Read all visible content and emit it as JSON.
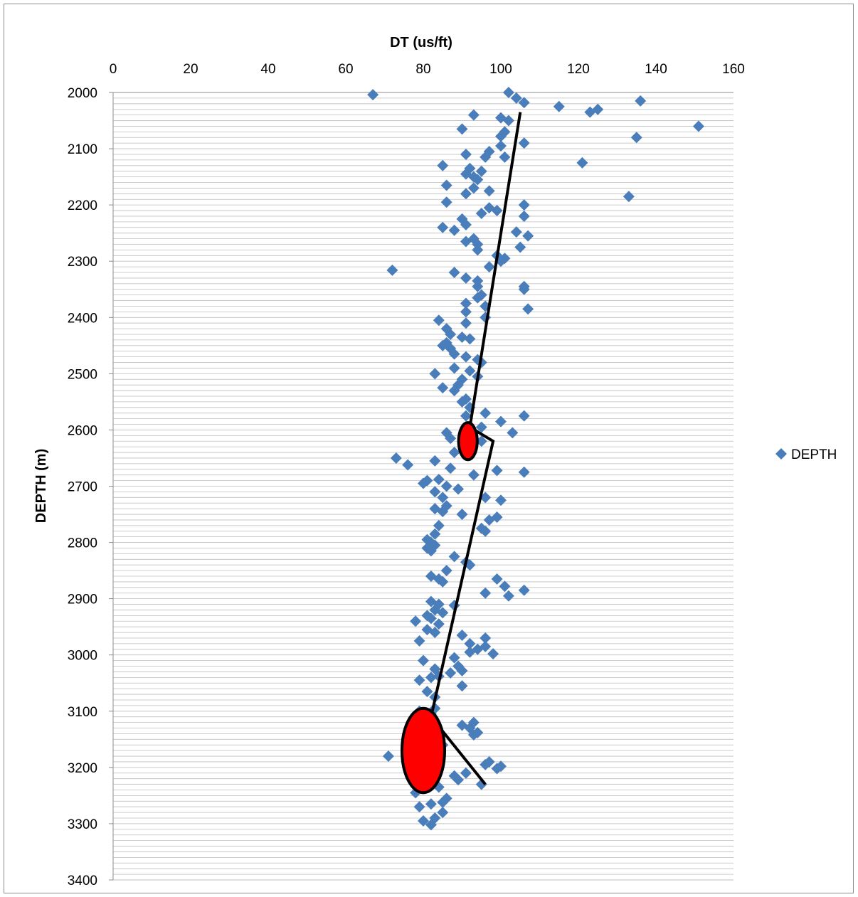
{
  "chart_data": {
    "type": "scatter",
    "title": "",
    "xlabel": "DT (us/ft)",
    "ylabel": "DEPTH (m)",
    "xlim": [
      0,
      160
    ],
    "ylim": [
      2000,
      3400
    ],
    "y_reversed": true,
    "x_axis_position": "top",
    "x_ticks": [
      "0",
      "20",
      "40",
      "60",
      "80",
      "100",
      "120",
      "140",
      "160"
    ],
    "y_ticks": [
      "2000",
      "2100",
      "2200",
      "2300",
      "2400",
      "2500",
      "2600",
      "2700",
      "2800",
      "2900",
      "3000",
      "3100",
      "3200",
      "3300",
      "3400"
    ],
    "grid": "horizontal minor gridlines",
    "legend_position": "right",
    "colors": {
      "marker": "#4a7ebb",
      "trend_line": "#000000",
      "highlight": "#ff0000"
    },
    "series": [
      {
        "name": "DEPTH",
        "marker": "diamond",
        "points": [
          [
            102,
            2000
          ],
          [
            67,
            2004
          ],
          [
            104,
            2010
          ],
          [
            106,
            2018
          ],
          [
            136,
            2015
          ],
          [
            115,
            2025
          ],
          [
            125,
            2030
          ],
          [
            123,
            2035
          ],
          [
            93,
            2040
          ],
          [
            100,
            2045
          ],
          [
            102,
            2050
          ],
          [
            151,
            2060
          ],
          [
            90,
            2065
          ],
          [
            101,
            2070
          ],
          [
            100,
            2078
          ],
          [
            135,
            2080
          ],
          [
            106,
            2090
          ],
          [
            100,
            2095
          ],
          [
            97,
            2105
          ],
          [
            91,
            2110
          ],
          [
            96,
            2115
          ],
          [
            101,
            2115
          ],
          [
            121,
            2125
          ],
          [
            85,
            2130
          ],
          [
            92,
            2135
          ],
          [
            95,
            2140
          ],
          [
            91,
            2145
          ],
          [
            93,
            2150
          ],
          [
            94,
            2155
          ],
          [
            86,
            2165
          ],
          [
            93,
            2170
          ],
          [
            97,
            2175
          ],
          [
            91,
            2180
          ],
          [
            133,
            2185
          ],
          [
            86,
            2195
          ],
          [
            106,
            2200
          ],
          [
            97,
            2205
          ],
          [
            99,
            2210
          ],
          [
            95,
            2215
          ],
          [
            106,
            2220
          ],
          [
            90,
            2225
          ],
          [
            91,
            2235
          ],
          [
            85,
            2240
          ],
          [
            88,
            2245
          ],
          [
            104,
            2248
          ],
          [
            107,
            2255
          ],
          [
            91,
            2265
          ],
          [
            93,
            2260
          ],
          [
            94,
            2270
          ],
          [
            94,
            2280
          ],
          [
            105,
            2275
          ],
          [
            99,
            2290
          ],
          [
            101,
            2295
          ],
          [
            100,
            2300
          ],
          [
            97,
            2310
          ],
          [
            72,
            2316
          ],
          [
            88,
            2320
          ],
          [
            91,
            2330
          ],
          [
            94,
            2335
          ],
          [
            94,
            2345
          ],
          [
            106,
            2345
          ],
          [
            106,
            2350
          ],
          [
            95,
            2360
          ],
          [
            94,
            2365
          ],
          [
            91,
            2375
          ],
          [
            96,
            2380
          ],
          [
            107,
            2385
          ],
          [
            91,
            2390
          ],
          [
            96,
            2400
          ],
          [
            84,
            2405
          ],
          [
            91,
            2410
          ],
          [
            86,
            2420
          ],
          [
            87,
            2430
          ],
          [
            90,
            2435
          ],
          [
            92,
            2438
          ],
          [
            86,
            2445
          ],
          [
            87,
            2455
          ],
          [
            85,
            2450
          ],
          [
            88,
            2465
          ],
          [
            91,
            2470
          ],
          [
            94,
            2475
          ],
          [
            95,
            2480
          ],
          [
            88,
            2490
          ],
          [
            92,
            2495
          ],
          [
            83,
            2500
          ],
          [
            94,
            2505
          ],
          [
            90,
            2510
          ],
          [
            89,
            2520
          ],
          [
            85,
            2525
          ],
          [
            88,
            2530
          ],
          [
            91,
            2545
          ],
          [
            90,
            2550
          ],
          [
            92,
            2560
          ],
          [
            96,
            2570
          ],
          [
            91,
            2575
          ],
          [
            106,
            2575
          ],
          [
            100,
            2585
          ],
          [
            95,
            2595
          ],
          [
            91,
            2600
          ],
          [
            86,
            2605
          ],
          [
            103,
            2605
          ],
          [
            87,
            2615
          ],
          [
            95,
            2620
          ],
          [
            92,
            2630
          ],
          [
            88,
            2640
          ],
          [
            73,
            2650
          ],
          [
            83,
            2655
          ],
          [
            76,
            2662
          ],
          [
            87,
            2668
          ],
          [
            99,
            2672
          ],
          [
            106,
            2675
          ],
          [
            93,
            2680
          ],
          [
            84,
            2688
          ],
          [
            80,
            2695
          ],
          [
            81,
            2690
          ],
          [
            86,
            2700
          ],
          [
            89,
            2705
          ],
          [
            83,
            2710
          ],
          [
            85,
            2720
          ],
          [
            96,
            2720
          ],
          [
            100,
            2725
          ],
          [
            86,
            2735
          ],
          [
            83,
            2740
          ],
          [
            85,
            2745
          ],
          [
            90,
            2750
          ],
          [
            99,
            2755
          ],
          [
            97,
            2760
          ],
          [
            84,
            2770
          ],
          [
            95,
            2775
          ],
          [
            96,
            2780
          ],
          [
            83,
            2785
          ],
          [
            81,
            2795
          ],
          [
            82,
            2800
          ],
          [
            83,
            2805
          ],
          [
            81,
            2810
          ],
          [
            82,
            2815
          ],
          [
            88,
            2825
          ],
          [
            91,
            2835
          ],
          [
            92,
            2840
          ],
          [
            86,
            2850
          ],
          [
            82,
            2860
          ],
          [
            84,
            2865
          ],
          [
            99,
            2865
          ],
          [
            85,
            2870
          ],
          [
            101,
            2878
          ],
          [
            106,
            2885
          ],
          [
            96,
            2890
          ],
          [
            102,
            2895
          ],
          [
            82,
            2905
          ],
          [
            84,
            2910
          ],
          [
            88,
            2912
          ],
          [
            83,
            2920
          ],
          [
            85,
            2925
          ],
          [
            81,
            2930
          ],
          [
            82,
            2935
          ],
          [
            78,
            2940
          ],
          [
            84,
            2945
          ],
          [
            81,
            2955
          ],
          [
            83,
            2960
          ],
          [
            90,
            2965
          ],
          [
            96,
            2970
          ],
          [
            79,
            2975
          ],
          [
            92,
            2980
          ],
          [
            96,
            2985
          ],
          [
            94,
            2990
          ],
          [
            92,
            2995
          ],
          [
            98,
            2998
          ],
          [
            88,
            3005
          ],
          [
            80,
            3010
          ],
          [
            89,
            3020
          ],
          [
            83,
            3025
          ],
          [
            90,
            3028
          ],
          [
            87,
            3032
          ],
          [
            84,
            3038
          ],
          [
            82,
            3040
          ],
          [
            79,
            3045
          ],
          [
            90,
            3055
          ],
          [
            81,
            3065
          ],
          [
            83,
            3075
          ],
          [
            83,
            3095
          ],
          [
            79,
            3100
          ],
          [
            82,
            3105
          ],
          [
            82,
            3112
          ],
          [
            93,
            3120
          ],
          [
            90,
            3125
          ],
          [
            92,
            3130
          ],
          [
            94,
            3138
          ],
          [
            93,
            3142
          ],
          [
            77,
            3155
          ],
          [
            85,
            3160
          ],
          [
            84,
            3165
          ],
          [
            83,
            3175
          ],
          [
            71,
            3180
          ],
          [
            79,
            3185
          ],
          [
            97,
            3190
          ],
          [
            96,
            3195
          ],
          [
            100,
            3198
          ],
          [
            99,
            3202
          ],
          [
            91,
            3210
          ],
          [
            88,
            3215
          ],
          [
            83,
            3218
          ],
          [
            89,
            3222
          ],
          [
            95,
            3230
          ],
          [
            84,
            3235
          ],
          [
            78,
            3245
          ],
          [
            86,
            3255
          ],
          [
            85,
            3262
          ],
          [
            82,
            3265
          ],
          [
            79,
            3270
          ],
          [
            85,
            3280
          ],
          [
            83,
            3290
          ],
          [
            80,
            3295
          ],
          [
            82,
            3302
          ]
        ]
      }
    ],
    "trend_line": {
      "points": [
        [
          105,
          2035
        ],
        [
          92,
          2595
        ],
        [
          98,
          2620
        ],
        [
          82,
          3110
        ],
        [
          96,
          3230
        ]
      ]
    },
    "highlights": [
      {
        "x": 91.5,
        "y": 2620,
        "rx_units": 2.4,
        "ry_units": 33
      },
      {
        "x": 80,
        "y": 3170,
        "rx_units": 5.5,
        "ry_units": 75
      }
    ]
  }
}
